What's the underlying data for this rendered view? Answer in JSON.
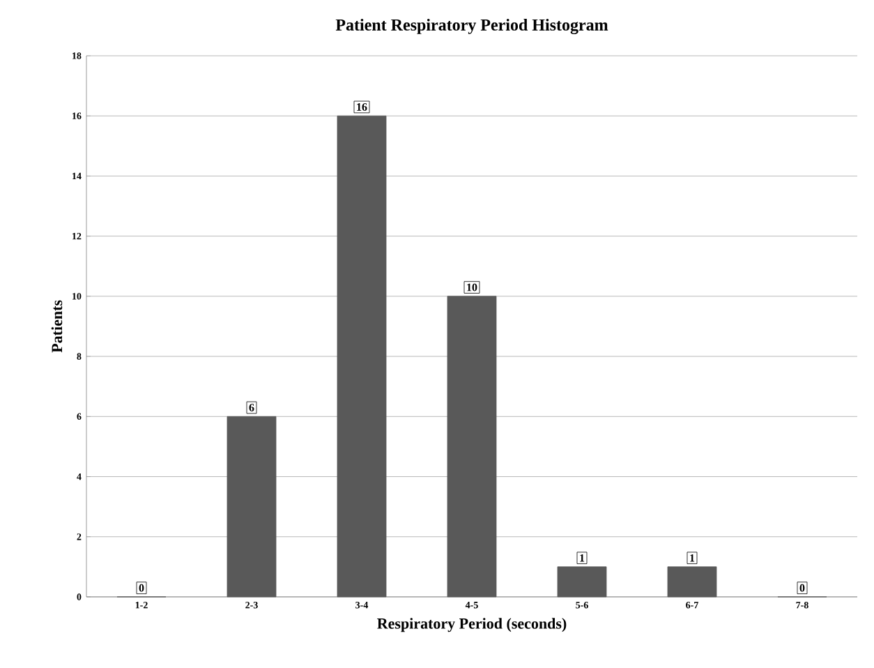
{
  "chart_data": {
    "type": "bar",
    "title": "Patient Respiratory Period Histogram",
    "xlabel": "Respiratory Period (seconds)",
    "ylabel": "Patients",
    "categories": [
      "1-2",
      "2-3",
      "3-4",
      "4-5",
      "5-6",
      "6-7",
      "7-8"
    ],
    "values": [
      0,
      6,
      16,
      10,
      1,
      1,
      0
    ],
    "color": "#595959",
    "ylim": [
      0,
      18
    ],
    "yticks": [
      0,
      2,
      4,
      6,
      8,
      10,
      12,
      14,
      16,
      18
    ],
    "grid": "y",
    "data_labels": true
  }
}
